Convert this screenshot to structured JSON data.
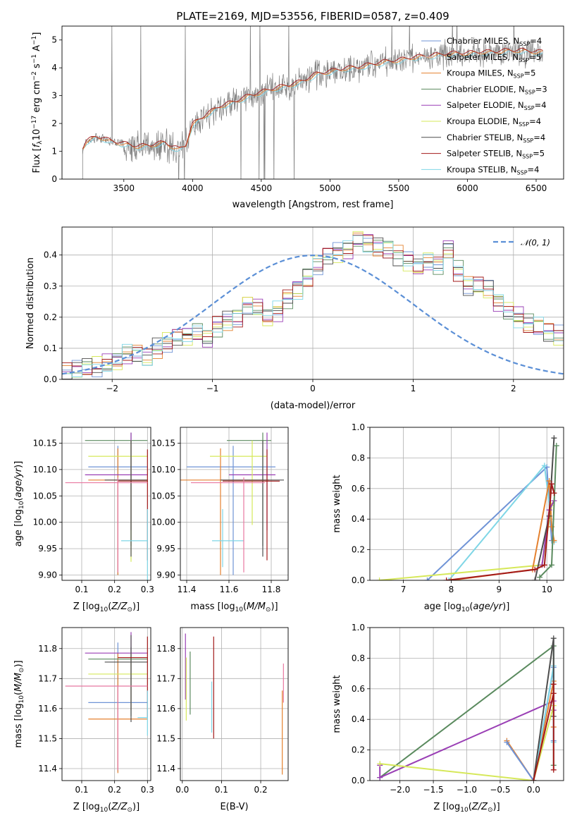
{
  "title": "PLATE=2169, MJD=53556, FIBERID=0587, z=0.409",
  "colors": {
    "chabrier_miles": "#6f93d6",
    "salpeter_miles": "#d9d9d9",
    "kroupa_miles": "#e4812f",
    "chabrier_elodie": "#5a8a5e",
    "salpeter_elodie": "#9a3fb5",
    "kroupa_elodie": "#d6e85a",
    "chabrier_stelib": "#4d4d4d",
    "salpeter_stelib": "#a31a1a",
    "kroupa_stelib": "#7fd6e6",
    "pink": "#e878a0",
    "data": "#808080",
    "normal_curve": "#5b8fd6"
  },
  "chart_data": [
    {
      "id": "spectrum",
      "type": "line",
      "title": "PLATE=2169, MJD=53556, FIBERID=0587, z=0.409",
      "xlabel": "wavelength [Angstrom, rest frame]",
      "ylabel": "Flux [f_λ 10^-17 erg cm^-2 s^-1 A^-1]",
      "ylabel_parts": {
        "a": "Flux [",
        "b": "f",
        "c": "λ",
        "d": "10",
        "e": "−17",
        "f": " erg cm",
        "g": "−2",
        "h": " s",
        "i": "−1",
        "j": " A",
        "k": "−1",
        "l": "]"
      },
      "xlim": [
        3050,
        6700
      ],
      "ylim": [
        0,
        5.5
      ],
      "xticks": [
        3500,
        4000,
        4500,
        5000,
        5500,
        6000,
        6500
      ],
      "yticks": [
        0,
        1,
        2,
        3,
        4,
        5
      ],
      "legend_position": "upper right",
      "legend": [
        {
          "name": "Chabrier MILES, N",
          "sub": "SSP",
          "tail": "=4",
          "color": "#6f93d6"
        },
        {
          "name": "Salpeter MILES, N",
          "sub": "SSP",
          "tail": "=5",
          "color": "#d9d9d9"
        },
        {
          "name": "Kroupa MILES, N",
          "sub": "SSP",
          "tail": "=5",
          "color": "#e4812f"
        },
        {
          "name": "Chabrier ELODIE, N",
          "sub": "SSP",
          "tail": "=3",
          "color": "#5a8a5e"
        },
        {
          "name": "Salpeter ELODIE, N",
          "sub": "SSP",
          "tail": "=4",
          "color": "#9a3fb5"
        },
        {
          "name": "Kroupa ELODIE, N",
          "sub": "SSP",
          "tail": "=4",
          "color": "#d6e85a"
        },
        {
          "name": "Chabrier STELIB, N",
          "sub": "SSP",
          "tail": "=4",
          "color": "#4d4d4d"
        },
        {
          "name": "Salpeter STELIB, N",
          "sub": "SSP",
          "tail": "=5",
          "color": "#a31a1a"
        },
        {
          "name": "Kroupa STELIB, N",
          "sub": "SSP",
          "tail": "=4",
          "color": "#7fd6e6"
        }
      ],
      "model_curve": {
        "x": [
          3200,
          3230,
          3300,
          3350,
          3400,
          3450,
          3500,
          3600,
          3700,
          3800,
          3850,
          3900,
          3950,
          4000,
          4100,
          4200,
          4300,
          4400,
          4500,
          4600,
          4700,
          4800,
          4900,
          5000,
          5100,
          5200,
          5300,
          5400,
          5500,
          5600,
          5700,
          5800,
          5900,
          6000,
          6100,
          6200,
          6300,
          6400,
          6500,
          6550
        ],
        "y": [
          1.1,
          1.35,
          1.5,
          1.45,
          1.35,
          1.3,
          1.25,
          1.15,
          1.2,
          1.3,
          1.15,
          1.05,
          1.2,
          1.95,
          2.3,
          2.6,
          2.75,
          2.95,
          3.1,
          3.25,
          3.35,
          3.5,
          3.75,
          3.85,
          3.95,
          4.0,
          4.1,
          4.2,
          4.25,
          4.35,
          4.4,
          4.45,
          4.5,
          4.5,
          4.55,
          4.55,
          4.6,
          4.6,
          4.55,
          4.55
        ]
      },
      "data_range": [
        3200,
        6550
      ]
    },
    {
      "id": "residuals",
      "type": "histogram",
      "xlabel": "(data-model)/error",
      "ylabel": "Normed distribution",
      "xlim": [
        -2.5,
        2.5
      ],
      "ylim": [
        0,
        0.49
      ],
      "xticks": [
        -2,
        -1,
        0,
        1,
        2
      ],
      "yticks": [
        0.0,
        0.1,
        0.2,
        0.3,
        0.4
      ],
      "legend": [
        {
          "name": "𝒩(0, 1)",
          "style": "dashed",
          "color": "#5b8fd6"
        }
      ],
      "legend_position": "upper right",
      "bin_width": 0.1,
      "bin_start": -2.5,
      "hist_values": [
        0.02,
        0.03,
        0.04,
        0.04,
        0.05,
        0.06,
        0.08,
        0.08,
        0.07,
        0.1,
        0.12,
        0.14,
        0.14,
        0.15,
        0.13,
        0.17,
        0.19,
        0.2,
        0.24,
        0.23,
        0.2,
        0.22,
        0.26,
        0.29,
        0.33,
        0.37,
        0.4,
        0.41,
        0.42,
        0.45,
        0.44,
        0.43,
        0.42,
        0.4,
        0.38,
        0.36,
        0.38,
        0.37,
        0.42,
        0.35,
        0.3,
        0.3,
        0.29,
        0.25,
        0.22,
        0.2,
        0.18,
        0.17,
        0.15,
        0.14,
        0.12,
        0.1,
        0.08,
        0.08,
        0.07,
        0.06,
        0.06,
        0.05,
        0.04,
        0.04,
        0.03
      ]
    },
    {
      "id": "age_vs_Z",
      "type": "errorbar",
      "xlabel": "Z [log10(Z/Z⊙)]",
      "ylabel": "age  [log10(age/yr)]",
      "xlim": [
        0.04,
        0.31
      ],
      "ylim": [
        9.89,
        10.18
      ],
      "xticks": [
        0.1,
        0.2,
        0.3
      ],
      "yticks": [
        9.9,
        9.95,
        10.0,
        10.05,
        10.1,
        10.15
      ],
      "points": [
        {
          "x": 0.21,
          "y": 10.105,
          "xerr": [
            0.09,
            0.09
          ],
          "yerr": [
            0.205,
            0.04
          ],
          "color": "#6f93d6"
        },
        {
          "x": 0.21,
          "y": 10.08,
          "xerr": [
            0.09,
            0.09
          ],
          "yerr": [
            0.18,
            0.06
          ],
          "color": "#e4812f"
        },
        {
          "x": 0.25,
          "y": 10.155,
          "xerr": [
            0.14,
            0.05
          ],
          "yerr": [
            0.2,
            0.015
          ],
          "color": "#5a8a5e"
        },
        {
          "x": 0.25,
          "y": 10.09,
          "xerr": [
            0.14,
            0.05
          ],
          "yerr": [
            0.105,
            0.08
          ],
          "color": "#9a3fb5"
        },
        {
          "x": 0.25,
          "y": 10.125,
          "xerr": [
            0.13,
            0.05
          ],
          "yerr": [
            0.2,
            0.03
          ],
          "color": "#d6e85a"
        },
        {
          "x": 0.25,
          "y": 10.08,
          "xerr": [
            0.08,
            0.05
          ],
          "yerr": [
            0.145,
            0.075
          ],
          "color": "#4d4d4d"
        },
        {
          "x": 0.3,
          "y": 10.078,
          "xerr": [
            0.09,
            0.0
          ],
          "yerr": [
            0.15,
            0.06
          ],
          "color": "#a31a1a"
        },
        {
          "x": 0.3,
          "y": 9.965,
          "xerr": [
            0.08,
            0.0
          ],
          "yerr": [
            0.1,
            0.06
          ],
          "color": "#7fd6e6"
        },
        {
          "x": 0.21,
          "y": 10.075,
          "xerr": [
            0.16,
            0.09
          ],
          "yerr": [
            0.17,
            0.01
          ],
          "color": "#e878a0"
        }
      ]
    },
    {
      "id": "age_vs_mass",
      "type": "errorbar",
      "xlabel": "mass [log10(M/M⊙)]",
      "xlim": [
        11.37,
        11.88
      ],
      "ylim": [
        9.89,
        10.18
      ],
      "xticks": [
        11.4,
        11.6,
        11.8
      ],
      "yticks": [
        9.9,
        9.95,
        10.0,
        10.05,
        10.1,
        10.15
      ],
      "points": [
        {
          "x": 11.62,
          "y": 10.105,
          "xerr": [
            0.22,
            0.2
          ],
          "yerr": [
            0.205,
            0.04
          ],
          "color": "#6f93d6"
        },
        {
          "x": 11.56,
          "y": 10.08,
          "xerr": [
            0.2,
            0.23
          ],
          "yerr": [
            0.18,
            0.06
          ],
          "color": "#e4812f"
        },
        {
          "x": 11.76,
          "y": 10.155,
          "xerr": [
            0.17,
            0.04
          ],
          "yerr": [
            0.2,
            0.015
          ],
          "color": "#5a8a5e"
        },
        {
          "x": 11.78,
          "y": 10.09,
          "xerr": [
            0.18,
            0.04
          ],
          "yerr": [
            0.105,
            0.08
          ],
          "color": "#9a3fb5"
        },
        {
          "x": 11.71,
          "y": 10.125,
          "xerr": [
            0.2,
            0.07
          ],
          "yerr": [
            0.13,
            0.03
          ],
          "color": "#d6e85a"
        },
        {
          "x": 11.76,
          "y": 10.08,
          "xerr": [
            0.2,
            0.1
          ],
          "yerr": [
            0.145,
            0.075
          ],
          "color": "#4d4d4d"
        },
        {
          "x": 11.78,
          "y": 10.078,
          "xerr": [
            0.21,
            0.06
          ],
          "yerr": [
            0.15,
            0.06
          ],
          "color": "#a31a1a"
        },
        {
          "x": 11.57,
          "y": 9.965,
          "xerr": [
            0.05,
            0.1
          ],
          "yerr": [
            0.05,
            0.06
          ],
          "color": "#7fd6e6"
        },
        {
          "x": 11.67,
          "y": 10.075,
          "xerr": [
            0.25,
            0.1
          ],
          "yerr": [
            0.17,
            0.01
          ],
          "color": "#e878a0"
        }
      ]
    },
    {
      "id": "weight_vs_age",
      "type": "line",
      "xlabel": "age  [log10(age/yr)]",
      "ylabel": "mass weight",
      "xlim": [
        6.3,
        10.35
      ],
      "ylim": [
        0,
        1.0
      ],
      "xticks": [
        7,
        8,
        9,
        10
      ],
      "yticks": [
        0.0,
        0.2,
        0.4,
        0.6,
        0.8,
        1.0
      ],
      "series": [
        {
          "color": "#6f93d6",
          "x": [
            7.5,
            10.0,
            10.1
          ],
          "y": [
            0.0,
            0.74,
            0.26
          ]
        },
        {
          "color": "#7fd6e6",
          "x": [
            7.95,
            9.95,
            10.15
          ],
          "y": [
            0.0,
            0.75,
            0.25
          ]
        },
        {
          "color": "#d6e85a",
          "x": [
            6.5,
            9.9,
            10.1
          ],
          "y": [
            0.0,
            0.1,
            0.49
          ]
        },
        {
          "color": "#e4812f",
          "x": [
            8.0,
            9.7,
            10.05,
            10.1,
            10.15
          ],
          "y": [
            0.0,
            0.07,
            0.65,
            0.35,
            0.26
          ]
        },
        {
          "color": "#9a3fb5",
          "x": [
            9.9,
            10.05,
            10.15
          ],
          "y": [
            0.1,
            0.46,
            0.52
          ]
        },
        {
          "color": "#4d4d4d",
          "x": [
            9.75,
            10.05,
            10.15
          ],
          "y": [
            0.0,
            0.42,
            0.93
          ]
        },
        {
          "color": "#5a8a5e",
          "x": [
            9.85,
            10.1,
            10.2
          ],
          "y": [
            0.02,
            0.1,
            0.88
          ]
        },
        {
          "color": "#a31a1a",
          "x": [
            7.9,
            9.75,
            9.95,
            10.1,
            10.15
          ],
          "y": [
            0.0,
            0.07,
            0.1,
            0.63,
            0.57
          ]
        }
      ]
    },
    {
      "id": "mass_vs_Z",
      "type": "errorbar",
      "xlabel": "Z [log10(Z/Z⊙)]",
      "ylabel": "mass [log10(M/M⊙)]",
      "xlim": [
        0.04,
        0.31
      ],
      "ylim": [
        11.36,
        11.87
      ],
      "xticks": [
        0.1,
        0.2,
        0.3
      ],
      "yticks": [
        11.4,
        11.5,
        11.6,
        11.7,
        11.8
      ],
      "points": [
        {
          "x": 0.21,
          "y": 11.62,
          "xerr": [
            0.09,
            0.09
          ],
          "yerr": [
            0.23,
            0.2
          ],
          "color": "#6f93d6"
        },
        {
          "x": 0.21,
          "y": 11.565,
          "xerr": [
            0.09,
            0.09
          ],
          "yerr": [
            0.18,
            0.22
          ],
          "color": "#e4812f"
        },
        {
          "x": 0.25,
          "y": 11.765,
          "xerr": [
            0.13,
            0.05
          ],
          "yerr": [
            0.19,
            0.04
          ],
          "color": "#5a8a5e"
        },
        {
          "x": 0.25,
          "y": 11.785,
          "xerr": [
            0.14,
            0.05
          ],
          "yerr": [
            0.19,
            0.07
          ],
          "color": "#9a3fb5"
        },
        {
          "x": 0.25,
          "y": 11.715,
          "xerr": [
            0.13,
            0.05
          ],
          "yerr": [
            0.12,
            0.07
          ],
          "color": "#d6e85a"
        },
        {
          "x": 0.25,
          "y": 11.755,
          "xerr": [
            0.08,
            0.05
          ],
          "yerr": [
            0.2,
            0.09
          ],
          "color": "#4d4d4d"
        },
        {
          "x": 0.3,
          "y": 11.77,
          "xerr": [
            0.09,
            0.0
          ],
          "yerr": [
            0.2,
            0.07
          ],
          "color": "#a31a1a"
        },
        {
          "x": 0.3,
          "y": 11.57,
          "xerr": [
            0.03,
            0.0
          ],
          "yerr": [
            0.06,
            0.09
          ],
          "color": "#7fd6e6"
        },
        {
          "x": 0.21,
          "y": 11.675,
          "xerr": [
            0.16,
            0.09
          ],
          "yerr": [
            0.28,
            0.0
          ],
          "color": "#e878a0"
        }
      ]
    },
    {
      "id": "mass_vs_EBV",
      "type": "errorbar",
      "xlabel": "E(B-V)",
      "xlim": [
        -0.005,
        0.27
      ],
      "ylim": [
        11.36,
        11.87
      ],
      "xticks": [
        0.0,
        0.1,
        0.2
      ],
      "yticks": [
        11.4,
        11.5,
        11.6,
        11.7,
        11.8
      ],
      "points": [
        {
          "x": 0.008,
          "y": 11.78,
          "xerr": [
            0,
            0
          ],
          "yerr": [
            0.15,
            0.07
          ],
          "color": "#9a3fb5"
        },
        {
          "x": 0.01,
          "y": 11.67,
          "xerr": [
            0,
            0
          ],
          "yerr": [
            0.11,
            0.1
          ],
          "color": "#d6e85a"
        },
        {
          "x": 0.02,
          "y": 11.7,
          "xerr": [
            0,
            0
          ],
          "yerr": [
            0.12,
            0.09
          ],
          "color": "#5a8a5e"
        },
        {
          "x": 0.075,
          "y": 11.6,
          "xerr": [
            0,
            0
          ],
          "yerr": [
            0.08,
            0.09
          ],
          "color": "#7fd6e6"
        },
        {
          "x": 0.08,
          "y": 11.7,
          "xerr": [
            0,
            0
          ],
          "yerr": [
            0.2,
            0.14
          ],
          "color": "#a31a1a"
        },
        {
          "x": 0.255,
          "y": 11.56,
          "xerr": [
            0,
            0
          ],
          "yerr": [
            0.18,
            0.1
          ],
          "color": "#e4812f"
        },
        {
          "x": 0.258,
          "y": 11.65,
          "xerr": [
            0,
            0
          ],
          "yerr": [
            0.03,
            0.1
          ],
          "color": "#e878a0"
        }
      ]
    },
    {
      "id": "weight_vs_Z",
      "type": "line",
      "xlabel": "Z [log10(Z/Z⊙)]",
      "ylabel": "mass weight",
      "xlim": [
        -2.45,
        0.45
      ],
      "ylim": [
        0,
        1.0
      ],
      "xticks": [
        -2.0,
        -1.5,
        -1.0,
        -0.5,
        0.0
      ],
      "yticks": [
        0.0,
        0.2,
        0.4,
        0.6,
        0.8,
        1.0
      ],
      "series": [
        {
          "color": "#5a8a5e",
          "x": [
            -2.3,
            0.3,
            0.3
          ],
          "y": [
            0.02,
            0.88,
            0.1
          ]
        },
        {
          "color": "#9a3fb5",
          "x": [
            -2.3,
            -2.3,
            0.3,
            0.3
          ],
          "y": [
            0.1,
            0.02,
            0.52,
            0.46
          ]
        },
        {
          "color": "#d6e85a",
          "x": [
            -2.3,
            0.0,
            0.3
          ],
          "y": [
            0.11,
            0.0,
            0.49
          ]
        },
        {
          "color": "#e4812f",
          "x": [
            -0.4,
            0.0,
            0.3,
            0.3
          ],
          "y": [
            0.26,
            0.0,
            0.65,
            0.35
          ]
        },
        {
          "color": "#6f93d6",
          "x": [
            -0.4,
            0.0,
            0.3,
            0.3
          ],
          "y": [
            0.25,
            0.0,
            0.74,
            0.26
          ]
        },
        {
          "color": "#7fd6e6",
          "x": [
            0.0,
            0.3,
            0.3
          ],
          "y": [
            0.0,
            0.75,
            0.25
          ]
        },
        {
          "color": "#4d4d4d",
          "x": [
            0.0,
            0.3,
            0.3
          ],
          "y": [
            0.0,
            0.93,
            0.42
          ]
        },
        {
          "color": "#a31a1a",
          "x": [
            0.0,
            0.3,
            0.3,
            0.3
          ],
          "y": [
            0.0,
            0.57,
            0.07,
            0.63
          ]
        }
      ]
    }
  ]
}
